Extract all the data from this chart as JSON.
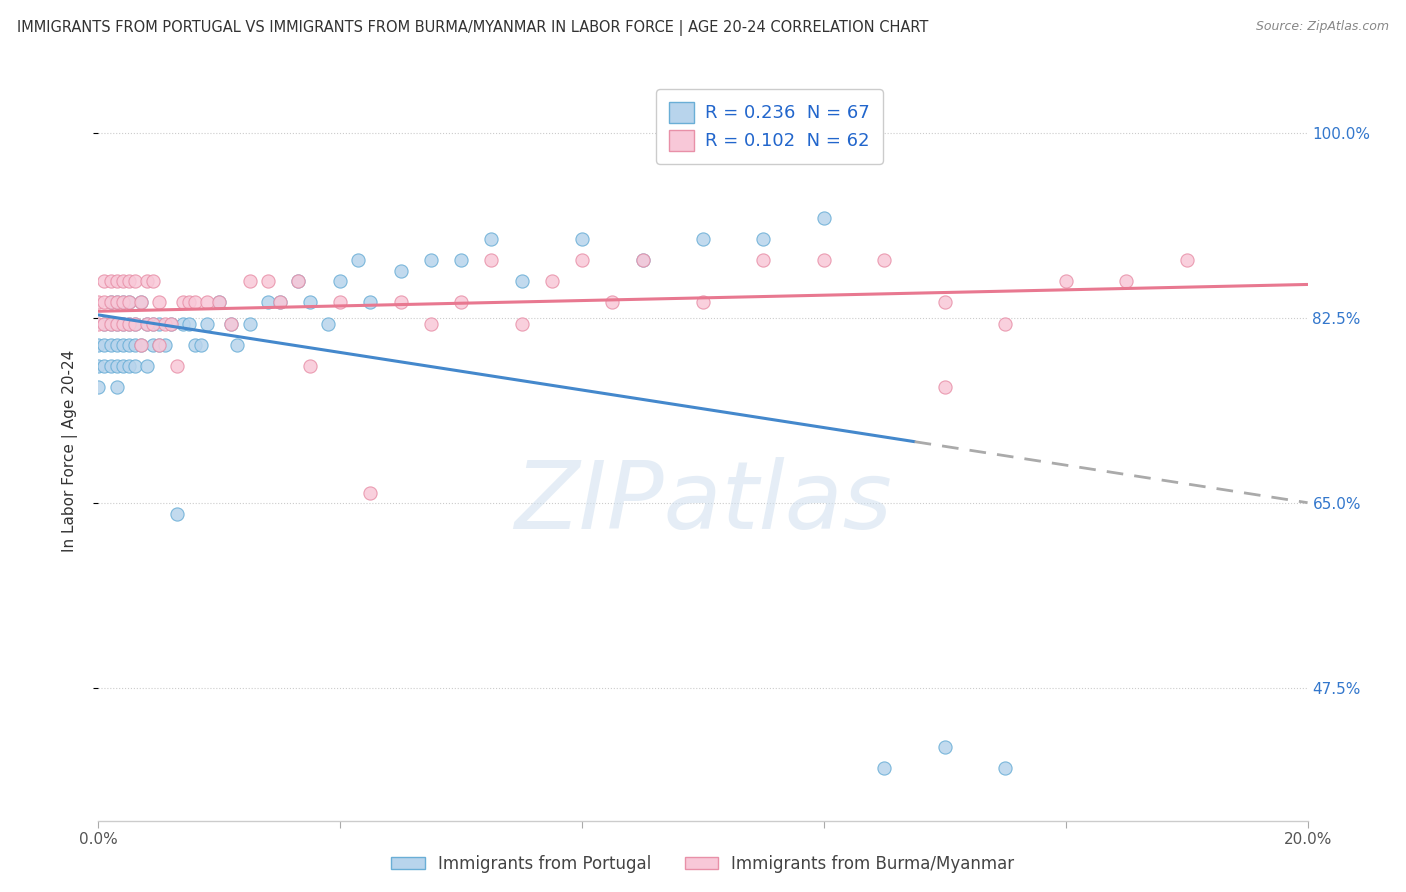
{
  "title": "IMMIGRANTS FROM PORTUGAL VS IMMIGRANTS FROM BURMA/MYANMAR IN LABOR FORCE | AGE 20-24 CORRELATION CHART",
  "source": "Source: ZipAtlas.com",
  "ylabel": "In Labor Force | Age 20-24",
  "xlim": [
    0.0,
    0.2
  ],
  "ylim": [
    0.35,
    1.05
  ],
  "ytick_positions": [
    0.475,
    0.65,
    0.825,
    1.0
  ],
  "ytick_labels": [
    "47.5%",
    "65.0%",
    "82.5%",
    "100.0%"
  ],
  "R_portugal": 0.236,
  "N_portugal": 67,
  "R_burma": 0.102,
  "N_burma": 62,
  "color_portugal": "#b8d4ec",
  "color_burma": "#f8c8d8",
  "edge_portugal": "#6aaed6",
  "edge_burma": "#e890a8",
  "line_color_portugal": "#4488cc",
  "line_color_burma": "#e87890",
  "legend_label_portugal": "Immigrants from Portugal",
  "legend_label_burma": "Immigrants from Burma/Myanmar",
  "portugal_x": [
    0.0,
    0.0,
    0.0,
    0.001,
    0.001,
    0.001,
    0.002,
    0.002,
    0.002,
    0.002,
    0.003,
    0.003,
    0.003,
    0.003,
    0.003,
    0.004,
    0.004,
    0.004,
    0.004,
    0.005,
    0.005,
    0.005,
    0.005,
    0.006,
    0.006,
    0.006,
    0.007,
    0.007,
    0.008,
    0.008,
    0.009,
    0.009,
    0.01,
    0.01,
    0.011,
    0.012,
    0.013,
    0.014,
    0.015,
    0.016,
    0.017,
    0.018,
    0.02,
    0.022,
    0.023,
    0.025,
    0.028,
    0.03,
    0.033,
    0.035,
    0.038,
    0.04,
    0.043,
    0.045,
    0.05,
    0.055,
    0.06,
    0.065,
    0.07,
    0.08,
    0.09,
    0.1,
    0.11,
    0.12,
    0.13,
    0.14,
    0.15
  ],
  "portugal_y": [
    0.8,
    0.78,
    0.76,
    0.82,
    0.8,
    0.78,
    0.84,
    0.82,
    0.8,
    0.78,
    0.84,
    0.82,
    0.8,
    0.78,
    0.76,
    0.84,
    0.82,
    0.8,
    0.78,
    0.84,
    0.82,
    0.8,
    0.78,
    0.82,
    0.8,
    0.78,
    0.84,
    0.8,
    0.82,
    0.78,
    0.82,
    0.8,
    0.82,
    0.8,
    0.8,
    0.82,
    0.64,
    0.82,
    0.82,
    0.8,
    0.8,
    0.82,
    0.84,
    0.82,
    0.8,
    0.82,
    0.84,
    0.84,
    0.86,
    0.84,
    0.82,
    0.86,
    0.88,
    0.84,
    0.87,
    0.88,
    0.88,
    0.9,
    0.86,
    0.9,
    0.88,
    0.9,
    0.9,
    0.92,
    0.4,
    0.42,
    0.4
  ],
  "burma_x": [
    0.0,
    0.0,
    0.001,
    0.001,
    0.001,
    0.002,
    0.002,
    0.002,
    0.003,
    0.003,
    0.003,
    0.004,
    0.004,
    0.004,
    0.005,
    0.005,
    0.005,
    0.006,
    0.006,
    0.007,
    0.007,
    0.008,
    0.008,
    0.009,
    0.009,
    0.01,
    0.01,
    0.011,
    0.012,
    0.013,
    0.014,
    0.015,
    0.016,
    0.018,
    0.02,
    0.022,
    0.025,
    0.028,
    0.03,
    0.033,
    0.035,
    0.04,
    0.045,
    0.05,
    0.055,
    0.06,
    0.065,
    0.07,
    0.075,
    0.08,
    0.085,
    0.09,
    0.1,
    0.11,
    0.12,
    0.13,
    0.14,
    0.15,
    0.16,
    0.17,
    0.18,
    0.14
  ],
  "burma_y": [
    0.84,
    0.82,
    0.86,
    0.84,
    0.82,
    0.86,
    0.84,
    0.82,
    0.86,
    0.84,
    0.82,
    0.86,
    0.84,
    0.82,
    0.86,
    0.84,
    0.82,
    0.86,
    0.82,
    0.84,
    0.8,
    0.86,
    0.82,
    0.86,
    0.82,
    0.84,
    0.8,
    0.82,
    0.82,
    0.78,
    0.84,
    0.84,
    0.84,
    0.84,
    0.84,
    0.82,
    0.86,
    0.86,
    0.84,
    0.86,
    0.78,
    0.84,
    0.66,
    0.84,
    0.82,
    0.84,
    0.88,
    0.82,
    0.86,
    0.88,
    0.84,
    0.88,
    0.84,
    0.88,
    0.88,
    0.88,
    0.84,
    0.82,
    0.86,
    0.86,
    0.88,
    0.76
  ]
}
